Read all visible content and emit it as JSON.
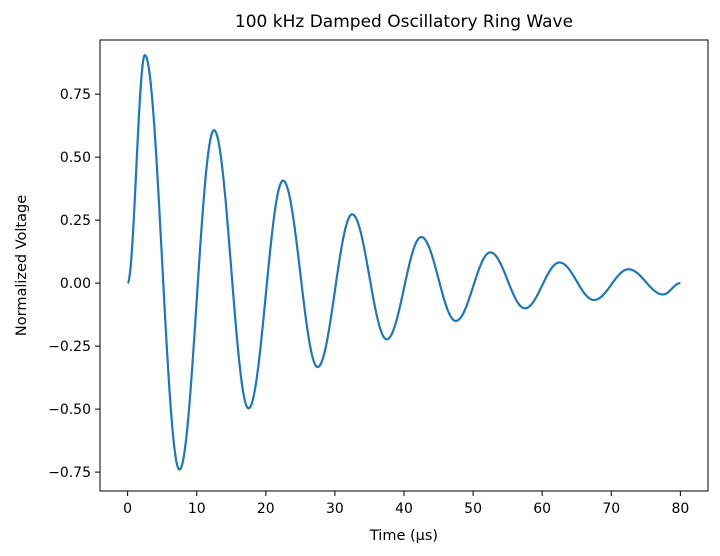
{
  "chart_data": {
    "type": "line",
    "title": "100 kHz Damped Oscillatory Ring Wave",
    "xlabel": "Time (µs)",
    "ylabel": "Normalized Voltage",
    "xlim": [
      -4,
      84
    ],
    "ylim": [
      -0.825,
      0.965
    ],
    "xticks": [
      0,
      10,
      20,
      30,
      40,
      50,
      60,
      70,
      80
    ],
    "yticks": [
      -0.75,
      -0.5,
      -0.25,
      0.0,
      0.25,
      0.5,
      0.75
    ],
    "xtick_labels": [
      "0",
      "10",
      "20",
      "30",
      "40",
      "50",
      "60",
      "70",
      "80"
    ],
    "ytick_labels": [
      "−0.75",
      "−0.50",
      "−0.25",
      "0.00",
      "0.25",
      "0.50",
      "0.75"
    ],
    "grid": false,
    "series": [
      {
        "color": "#1f77b4",
        "x": [
          0,
          2.5,
          7.5,
          12.5,
          17.5,
          22.5,
          27.5,
          32.5,
          37.5,
          42.5,
          47.5,
          52.5,
          57.5,
          62.5,
          67.5,
          72.5,
          77.5,
          80
        ],
        "y": [
          0.0,
          0.905,
          -0.74,
          0.607,
          -0.497,
          0.407,
          -0.333,
          0.273,
          -0.223,
          0.183,
          -0.15,
          0.122,
          -0.1,
          0.082,
          -0.067,
          0.055,
          -0.045,
          0.0
        ]
      }
    ]
  }
}
